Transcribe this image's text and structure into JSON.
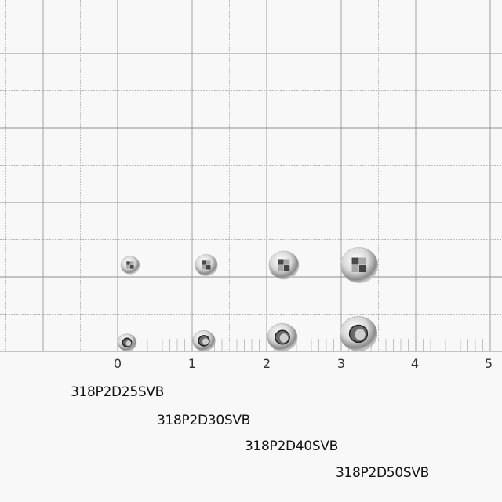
{
  "ruler": {
    "unit_labels": [
      "0",
      "1",
      "2",
      "3",
      "4",
      "5"
    ]
  },
  "products": [
    {
      "code": "318P2D25SVB",
      "size_mm": 2.5
    },
    {
      "code": "318P2D30SVB",
      "size_mm": 3.0
    },
    {
      "code": "318P2D40SVB",
      "size_mm": 4.0
    },
    {
      "code": "318P2D50SVB",
      "size_mm": 5.0
    }
  ],
  "colors": {
    "grid": "#9a9a9a",
    "paper": "#f8f8f8",
    "silver": "#d9d9d9"
  }
}
